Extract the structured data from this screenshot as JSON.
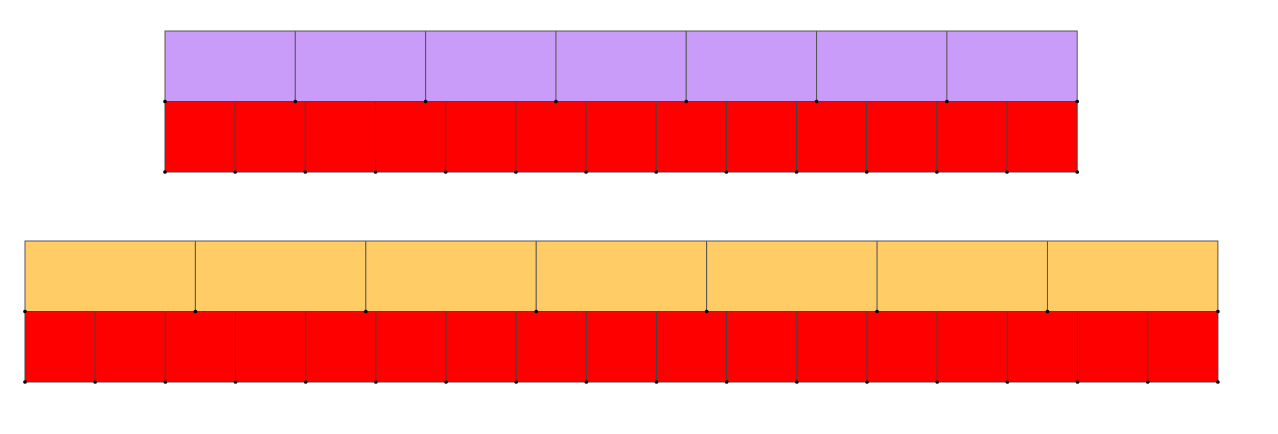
{
  "groups": [
    {
      "top_segments": 7,
      "top_color": "#c99cfa",
      "bottom_segments": 13,
      "bottom_color": "#ff0000"
    },
    {
      "top_segments": 7,
      "top_color": "#ffcc66",
      "bottom_segments": 17,
      "bottom_color": "#ff0000"
    }
  ]
}
